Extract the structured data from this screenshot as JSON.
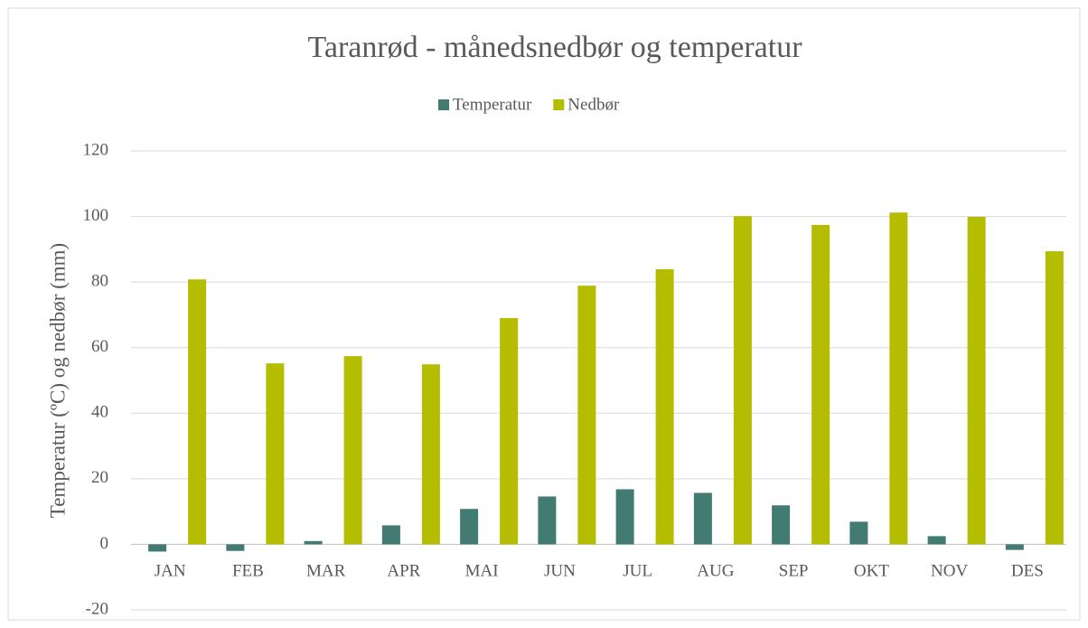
{
  "chart_data": {
    "type": "bar",
    "title": "Taranrød - månedsnedbør og temperatur",
    "y_label": "Temperatur (ºC) og nedbør (mm)",
    "categories": [
      "JAN",
      "FEB",
      "MAR",
      "APR",
      "MAI",
      "JUN",
      "JUL",
      "AUG",
      "SEP",
      "OKT",
      "NOV",
      "DES"
    ],
    "series": [
      {
        "name": "Temperatur",
        "color": "#417b72",
        "values": [
          -2.2,
          -2,
          1,
          5.8,
          10.8,
          14.6,
          16.8,
          15.7,
          11.9,
          6.9,
          2.5,
          -1.7
        ]
      },
      {
        "name": "Nedbør",
        "color": "#b5bd00",
        "values": [
          80.8,
          55.2,
          57.4,
          54.9,
          69,
          78.9,
          83.9,
          100.1,
          97.4,
          101.2,
          99.9,
          89.4
        ]
      }
    ],
    "ylim": [
      -20,
      120
    ],
    "yticks": [
      -20,
      0,
      20,
      40,
      60,
      80,
      100,
      120
    ],
    "grid": true,
    "legend": "top"
  }
}
